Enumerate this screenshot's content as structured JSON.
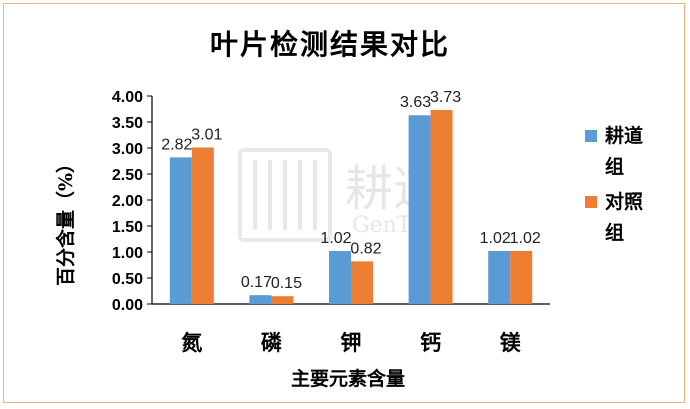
{
  "chart_data": {
    "type": "bar",
    "title": "叶片检测结果对比",
    "xlabel": "主要元素含量",
    "ylabel": "百分含量（%）",
    "categories": [
      "氮",
      "磷",
      "钾",
      "钙",
      "镁"
    ],
    "series": [
      {
        "name": "耕道组",
        "values": [
          2.82,
          0.17,
          1.02,
          3.63,
          1.02
        ],
        "labels": [
          "2.82",
          "0.17",
          "1.02",
          "3.63",
          "1.02"
        ],
        "color": "#5b9bd5"
      },
      {
        "name": "对照组",
        "values": [
          3.01,
          0.15,
          0.82,
          3.73,
          1.02
        ],
        "labels": [
          "3.01",
          "0.15",
          "0.82",
          "3.73",
          "1.02"
        ],
        "color": "#ed7d31"
      }
    ],
    "ylim": [
      0,
      4
    ],
    "yticks": [
      "0.00",
      "0.50",
      "1.00",
      "1.50",
      "2.00",
      "2.50",
      "3.00",
      "3.50",
      "4.00"
    ],
    "grid": false,
    "legend_position": "right"
  },
  "watermark": {
    "name": "耕道",
    "latin": "GenTao"
  },
  "colors": {
    "frame": "#f4b183",
    "axis": "#000000"
  }
}
